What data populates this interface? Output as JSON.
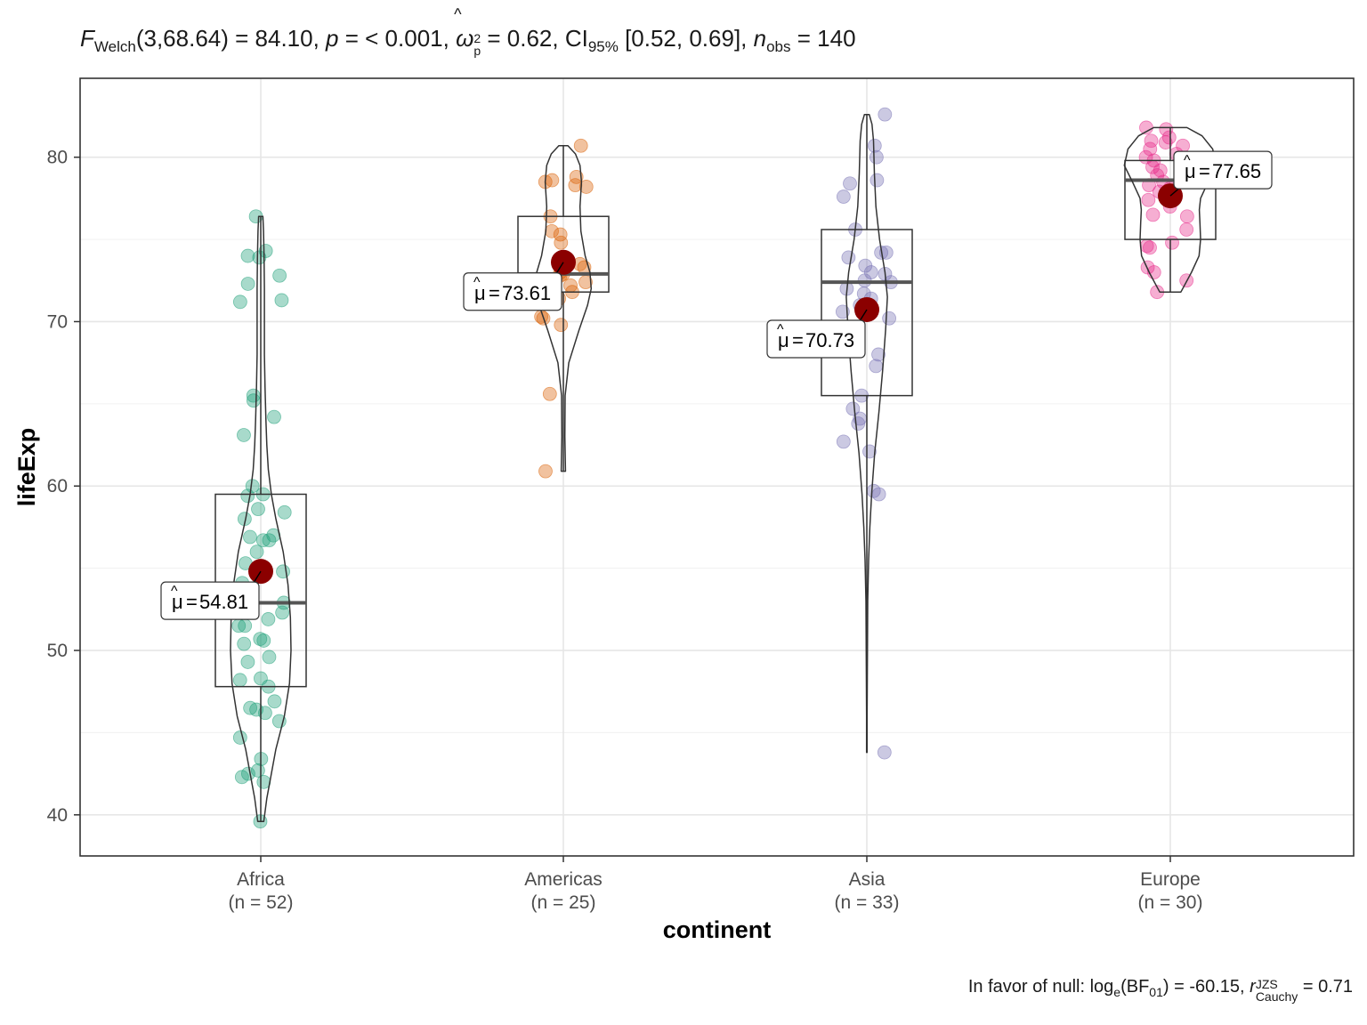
{
  "title": {
    "stat_symbol": "F",
    "stat_sub": "Welch",
    "stat_args": "(3,68.64) = 84.10, ",
    "p_label": "p",
    "p_value": " = < 0.001, ",
    "effect_symbol": "ω",
    "effect_hat": "^",
    "effect_sub": "p",
    "effect_sup": "2",
    "effect_value": " = 0.62, ",
    "ci_label": "CI",
    "ci_sub": "95%",
    "ci_value": " [0.52, 0.69], ",
    "n_label": "n",
    "n_sub": "obs",
    "n_value": " = 140"
  },
  "caption": {
    "prefix": "In favor of null: log",
    "log_sub": "e",
    "bf": "(BF",
    "bf_sub": "01",
    "bf_value": ") = -60.15, ",
    "r_symbol": "r",
    "r_sup": "JZS",
    "r_sub": "Cauchy",
    "r_value": " = 0.71"
  },
  "chart_data": {
    "type": "violin-box-scatter",
    "xlabel": "continent",
    "ylabel": "lifeExp",
    "ylim": [
      37.5,
      84.8
    ],
    "yticks": [
      40,
      50,
      60,
      70,
      80
    ],
    "grid": true,
    "legend": "none",
    "mean_color": "#8B0000",
    "categories": [
      {
        "name": "Africa",
        "n_label": "(n = 52)",
        "color": "#1B9E77",
        "mean": 54.81,
        "mean_label": "54.81",
        "label_side": "left",
        "box": {
          "q1": 47.8,
          "median": 52.9,
          "q3": 59.5,
          "min": 39.6,
          "max": 76.4
        },
        "violin": [
          [
            39.6,
            0.1
          ],
          [
            41,
            0.2
          ],
          [
            42.5,
            0.35
          ],
          [
            44,
            0.5
          ],
          [
            46,
            0.78
          ],
          [
            48,
            0.95
          ],
          [
            50,
            1.0
          ],
          [
            52,
            0.98
          ],
          [
            54,
            0.9
          ],
          [
            56,
            0.74
          ],
          [
            58,
            0.5
          ],
          [
            59.5,
            0.35
          ],
          [
            61,
            0.25
          ],
          [
            62.5,
            0.2
          ],
          [
            64,
            0.17
          ],
          [
            66,
            0.14
          ],
          [
            68,
            0.12
          ],
          [
            70,
            0.12
          ],
          [
            72,
            0.12
          ],
          [
            74,
            0.11
          ],
          [
            75.5,
            0.09
          ],
          [
            76.4,
            0.07
          ]
        ],
        "points": [
          39.6,
          42.0,
          42.3,
          42.5,
          42.7,
          43.4,
          44.7,
          45.7,
          46.2,
          46.4,
          46.5,
          46.9,
          47.8,
          48.2,
          48.3,
          49.3,
          49.6,
          50.4,
          50.6,
          50.7,
          51.5,
          51.5,
          52.3,
          52.9,
          54.1,
          54.5,
          54.8,
          55.3,
          56.0,
          56.7,
          56.7,
          56.9,
          58.0,
          58.4,
          58.6,
          59.4,
          59.5,
          60.0,
          63.1,
          64.2,
          65.2,
          65.5,
          71.2,
          71.3,
          72.3,
          72.8,
          73.9,
          74.0,
          74.3,
          76.4,
          57.0,
          51.9
        ]
      },
      {
        "name": "Americas",
        "n_label": "(n = 25)",
        "color": "#D95F02",
        "mean": 73.61,
        "mean_label": "73.61",
        "label_side": "left",
        "box": {
          "q1": 71.8,
          "median": 72.9,
          "q3": 76.4,
          "min": 60.9,
          "max": 80.7
        },
        "violin": [
          [
            60.9,
            0.07
          ],
          [
            63,
            0.05
          ],
          [
            65.5,
            0.06
          ],
          [
            67.5,
            0.18
          ],
          [
            69.5,
            0.52
          ],
          [
            71,
            0.8
          ],
          [
            72,
            0.92
          ],
          [
            73,
            0.88
          ],
          [
            74,
            0.72
          ],
          [
            75.5,
            0.58
          ],
          [
            77,
            0.55
          ],
          [
            78.5,
            0.6
          ],
          [
            79.5,
            0.55
          ],
          [
            80.2,
            0.4
          ],
          [
            80.7,
            0.15
          ]
        ],
        "points": [
          60.9,
          65.6,
          69.8,
          70.2,
          70.3,
          71.4,
          71.8,
          72.2,
          72.4,
          72.6,
          72.8,
          72.9,
          73.0,
          73.5,
          74.8,
          75.3,
          75.5,
          76.4,
          78.3,
          78.5,
          78.6,
          78.8,
          80.7,
          78.2,
          73.3
        ]
      },
      {
        "name": "Asia",
        "n_label": "(n = 33)",
        "color": "#7570B3",
        "mean": 70.73,
        "mean_label": "70.73",
        "label_side": "left",
        "box": {
          "q1": 65.5,
          "median": 72.4,
          "q3": 75.6,
          "min": 43.8,
          "max": 82.6
        },
        "violin": [
          [
            43.8,
            0.01
          ],
          [
            46,
            0.01
          ],
          [
            50,
            0.02
          ],
          [
            53,
            0.03
          ],
          [
            55.5,
            0.06
          ],
          [
            57.5,
            0.1
          ],
          [
            59.5,
            0.16
          ],
          [
            62,
            0.26
          ],
          [
            64.5,
            0.4
          ],
          [
            67,
            0.52
          ],
          [
            69.5,
            0.62
          ],
          [
            71.5,
            0.68
          ],
          [
            73,
            0.6
          ],
          [
            75,
            0.42
          ],
          [
            77,
            0.3
          ],
          [
            79,
            0.25
          ],
          [
            81,
            0.22
          ],
          [
            82,
            0.17
          ],
          [
            82.6,
            0.08
          ]
        ],
        "points": [
          43.8,
          59.5,
          59.7,
          62.1,
          62.7,
          63.8,
          64.1,
          64.7,
          65.5,
          67.3,
          68.0,
          69.0,
          70.2,
          70.6,
          71.0,
          71.4,
          71.7,
          72.0,
          72.4,
          72.5,
          72.9,
          73.0,
          73.4,
          73.9,
          74.2,
          74.2,
          75.6,
          77.6,
          78.4,
          78.6,
          80.0,
          80.7,
          82.6
        ]
      },
      {
        "name": "Europe",
        "n_label": "(n = 30)",
        "color": "#E7298A",
        "mean": 77.65,
        "mean_label": "77.65",
        "label_side": "right",
        "box": {
          "q1": 75.0,
          "median": 78.6,
          "q3": 79.8,
          "min": 71.8,
          "max": 81.8
        },
        "violin": [
          [
            71.8,
            0.35
          ],
          [
            73,
            0.7
          ],
          [
            74,
            0.95
          ],
          [
            75,
            1.0
          ],
          [
            76,
            0.98
          ],
          [
            76.8,
            0.96
          ],
          [
            77.5,
            1.0
          ],
          [
            78.5,
            1.25
          ],
          [
            79.5,
            1.52
          ],
          [
            80.5,
            1.4
          ],
          [
            81.3,
            1.05
          ],
          [
            81.8,
            0.55
          ]
        ],
        "points": [
          71.8,
          72.5,
          73.0,
          73.3,
          74.5,
          74.6,
          74.8,
          75.6,
          76.4,
          76.5,
          77.0,
          77.4,
          77.9,
          78.1,
          78.3,
          78.5,
          78.9,
          79.2,
          79.4,
          79.4,
          79.8,
          80.0,
          80.2,
          80.5,
          80.9,
          81.0,
          81.2,
          81.7,
          81.8,
          80.7
        ]
      }
    ]
  }
}
